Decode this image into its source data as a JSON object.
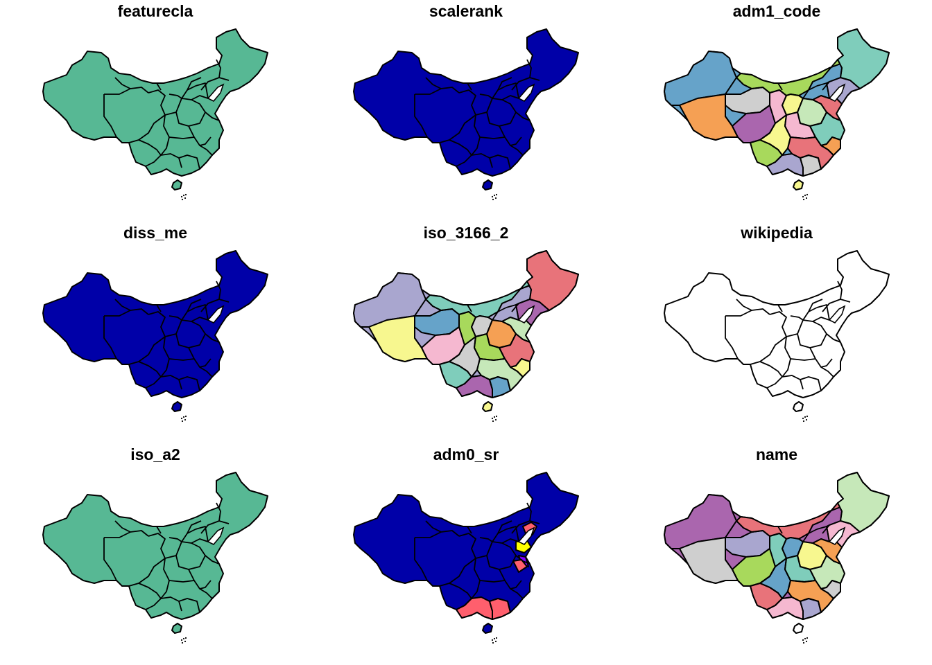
{
  "panels": [
    {
      "title": "featurecla",
      "style": "single",
      "fill": "#57B894"
    },
    {
      "title": "scalerank",
      "style": "single",
      "fill": "#0000A8"
    },
    {
      "title": "adm1_code",
      "style": "multi"
    },
    {
      "title": "diss_me",
      "style": "single",
      "fill": "#0000A8"
    },
    {
      "title": "iso_3166_2",
      "style": "multi"
    },
    {
      "title": "wikipedia",
      "style": "single",
      "fill": "#FFFFFF"
    },
    {
      "title": "iso_a2",
      "style": "single",
      "fill": "#57B894"
    },
    {
      "title": "adm0_sr",
      "style": "adm0"
    },
    {
      "title": "name",
      "style": "multi"
    }
  ],
  "colors": {
    "palette": [
      "#66A3C9",
      "#A8D95C",
      "#F5A054",
      "#A9A6CF",
      "#7FCDBB",
      "#F7F78F",
      "#AA66AE",
      "#E8737A",
      "#CFCFCF",
      "#F5B8D0",
      "#C6E8B9"
    ],
    "adm0_palette": [
      "#0000A8",
      "#FF5F6D",
      "#FFFF00",
      "#8000FF"
    ],
    "outline": "#000000",
    "inner_bay": "#FFFFFF"
  }
}
